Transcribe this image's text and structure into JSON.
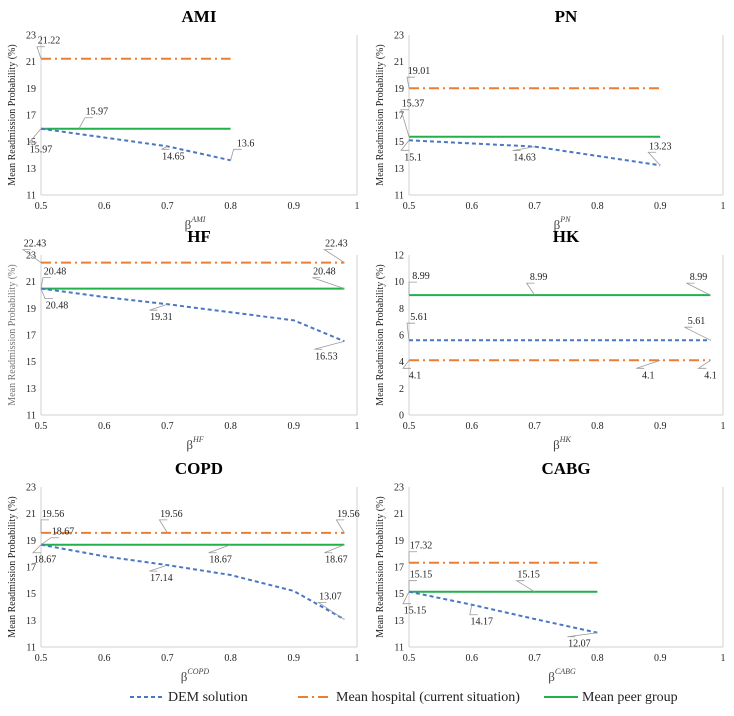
{
  "legend": [
    {
      "name": "DEM solution",
      "color": "#4a77c4",
      "dash": "4,3"
    },
    {
      "name": "Mean hospital (current situation)",
      "color": "#ed7d31",
      "dash": "10,4,2,4"
    },
    {
      "name": "Mean peer group",
      "color": "#22b04b",
      "dash": ""
    }
  ],
  "chart_data": [
    {
      "type": "line",
      "title": "AMI",
      "ylabel": "Mean Readmission Probability (%)",
      "xlabel_base": "β",
      "xlabel_sup": "AMI",
      "xlim": [
        0.5,
        1
      ],
      "ylim": [
        11,
        23
      ],
      "xticks": [
        "0.5",
        "0.6",
        "0.7",
        "0.8",
        "0.9",
        "1"
      ],
      "yticks": [
        "11",
        "13",
        "15",
        "17",
        "19",
        "21",
        "23"
      ],
      "series": [
        {
          "name": "DEM solution",
          "x": [
            0.5,
            0.7,
            0.8
          ],
          "y": [
            15.97,
            14.65,
            13.6
          ]
        },
        {
          "name": "Mean hospital (current situation)",
          "x": [
            0.5,
            0.8
          ],
          "y": [
            21.22,
            21.22
          ]
        },
        {
          "name": "Mean peer group",
          "x": [
            0.5,
            0.8
          ],
          "y": [
            15.97,
            15.97
          ]
        }
      ],
      "labels": [
        {
          "text": "21.22",
          "x": 0.5,
          "y": 21.22,
          "dx": 8,
          "dy": -15
        },
        {
          "text": "15.97",
          "x": 0.56,
          "y": 15.97,
          "dx": 18,
          "dy": -14
        },
        {
          "text": "15.97",
          "x": 0.5,
          "y": 15.97,
          "dx": 0,
          "dy": 24
        },
        {
          "text": "14.65",
          "x": 0.7,
          "y": 14.65,
          "dx": 6,
          "dy": 13
        },
        {
          "text": "13.6",
          "x": 0.8,
          "y": 13.6,
          "dx": 15,
          "dy": -14
        }
      ]
    },
    {
      "type": "line",
      "title": "PN",
      "ylabel": "Mean Readmission Probability (%)",
      "xlabel_base": "β",
      "xlabel_sup": "PN",
      "xlim": [
        0.5,
        1
      ],
      "ylim": [
        11,
        23
      ],
      "xticks": [
        "0.5",
        "0.6",
        "0.7",
        "0.8",
        "0.9",
        "1"
      ],
      "yticks": [
        "11",
        "13",
        "15",
        "17",
        "19",
        "21",
        "23"
      ],
      "series": [
        {
          "name": "DEM solution",
          "x": [
            0.5,
            0.7,
            0.9
          ],
          "y": [
            15.1,
            14.63,
            13.23
          ]
        },
        {
          "name": "Mean hospital (current situation)",
          "x": [
            0.5,
            0.9
          ],
          "y": [
            19.01,
            19.01
          ]
        },
        {
          "name": "Mean peer group",
          "x": [
            0.5,
            0.9
          ],
          "y": [
            15.37,
            15.37
          ]
        }
      ],
      "labels": [
        {
          "text": "19.01",
          "x": 0.5,
          "y": 19.01,
          "dx": 10,
          "dy": -14
        },
        {
          "text": "15.37",
          "x": 0.5,
          "y": 15.37,
          "dx": 4,
          "dy": -30
        },
        {
          "text": "15.1",
          "x": 0.5,
          "y": 15.1,
          "dx": 4,
          "dy": 20
        },
        {
          "text": "14.63",
          "x": 0.7,
          "y": 14.63,
          "dx": -10,
          "dy": 14
        },
        {
          "text": "13.23",
          "x": 0.9,
          "y": 13.23,
          "dx": 0,
          "dy": -16
        }
      ]
    },
    {
      "type": "line",
      "title": "HF",
      "ylabel": "Mean Readmission Probability (%)",
      "ylabel_gray": true,
      "xlabel_base": "β",
      "xlabel_sup": "HF",
      "xlim": [
        0.5,
        1
      ],
      "ylim": [
        11,
        23
      ],
      "xticks": [
        "0.5",
        "0.6",
        "0.7",
        "0.8",
        "0.9",
        "1"
      ],
      "yticks": [
        "11",
        "13",
        "15",
        "17",
        "19",
        "21",
        "23"
      ],
      "series": [
        {
          "name": "DEM solution",
          "x": [
            0.5,
            0.6,
            0.7,
            0.8,
            0.9,
            0.98
          ],
          "y": [
            20.48,
            19.85,
            19.31,
            18.7,
            18.1,
            16.53
          ]
        },
        {
          "name": "Mean hospital (current situation)",
          "x": [
            0.5,
            0.98
          ],
          "y": [
            22.43,
            22.43
          ]
        },
        {
          "name": "Mean peer group",
          "x": [
            0.5,
            0.98
          ],
          "y": [
            20.48,
            20.48
          ]
        }
      ],
      "labels": [
        {
          "text": "22.43",
          "x": 0.5,
          "y": 22.43,
          "dx": -6,
          "dy": -16
        },
        {
          "text": "22.43",
          "x": 0.98,
          "y": 22.43,
          "dx": -8,
          "dy": -16
        },
        {
          "text": "20.48",
          "x": 0.5,
          "y": 20.48,
          "dx": 14,
          "dy": -14
        },
        {
          "text": "20.48",
          "x": 0.98,
          "y": 20.48,
          "dx": -20,
          "dy": -14
        },
        {
          "text": "20.48",
          "x": 0.5,
          "y": 20.48,
          "dx": 16,
          "dy": 20
        },
        {
          "text": "19.31",
          "x": 0.7,
          "y": 19.31,
          "dx": -6,
          "dy": 16
        },
        {
          "text": "16.53",
          "x": 0.98,
          "y": 16.53,
          "dx": -18,
          "dy": 18
        }
      ]
    },
    {
      "type": "line",
      "title": "HK",
      "ylabel": "Mean Readmission Probability (%)",
      "xlabel_base": "β",
      "xlabel_sup": "HK",
      "xlim": [
        0.5,
        1
      ],
      "ylim": [
        0,
        12
      ],
      "xticks": [
        "0.5",
        "0.6",
        "0.7",
        "0.8",
        "0.9",
        "1"
      ],
      "yticks": [
        "0",
        "2",
        "4",
        "6",
        "8",
        "10",
        "12"
      ],
      "series": [
        {
          "name": "DEM solution",
          "x": [
            0.5,
            0.98
          ],
          "y": [
            5.61,
            5.61
          ]
        },
        {
          "name": "Mean hospital (current situation)",
          "x": [
            0.5,
            0.98
          ],
          "y": [
            4.1,
            4.1
          ]
        },
        {
          "name": "Mean peer group",
          "x": [
            0.5,
            0.98
          ],
          "y": [
            8.99,
            8.99
          ]
        }
      ],
      "labels": [
        {
          "text": "8.99",
          "x": 0.5,
          "y": 8.99,
          "dx": 12,
          "dy": -16
        },
        {
          "text": "8.99",
          "x": 0.7,
          "y": 8.99,
          "dx": 4,
          "dy": -15
        },
        {
          "text": "8.99",
          "x": 0.98,
          "y": 8.99,
          "dx": -12,
          "dy": -15
        },
        {
          "text": "5.61",
          "x": 0.5,
          "y": 5.61,
          "dx": 10,
          "dy": -20
        },
        {
          "text": "5.61",
          "x": 0.98,
          "y": 5.61,
          "dx": -14,
          "dy": -16
        },
        {
          "text": "4.1",
          "x": 0.5,
          "y": 4.1,
          "dx": 6,
          "dy": 18
        },
        {
          "text": "4.1",
          "x": 0.9,
          "y": 4.1,
          "dx": -12,
          "dy": 18
        },
        {
          "text": "4.1",
          "x": 0.98,
          "y": 4.1,
          "dx": 0,
          "dy": 18
        }
      ]
    },
    {
      "type": "line",
      "title": "COPD",
      "ylabel": "Mean Readmission Probability (%)",
      "xlabel_base": "β",
      "xlabel_sup": "COPD",
      "xlim": [
        0.5,
        1
      ],
      "ylim": [
        11,
        23
      ],
      "xticks": [
        "0.5",
        "0.6",
        "0.7",
        "0.8",
        "0.9",
        "1"
      ],
      "yticks": [
        "11",
        "13",
        "15",
        "17",
        "19",
        "21",
        "23"
      ],
      "series": [
        {
          "name": "DEM solution",
          "x": [
            0.5,
            0.6,
            0.7,
            0.8,
            0.9,
            0.98
          ],
          "y": [
            18.67,
            17.8,
            17.14,
            16.4,
            15.2,
            13.07
          ]
        },
        {
          "name": "Mean hospital (current situation)",
          "x": [
            0.5,
            0.98
          ],
          "y": [
            19.56,
            19.56
          ]
        },
        {
          "name": "Mean peer group",
          "x": [
            0.5,
            0.98
          ],
          "y": [
            18.67,
            18.67
          ]
        }
      ],
      "labels": [
        {
          "text": "19.56",
          "x": 0.5,
          "y": 19.56,
          "dx": 12,
          "dy": -16
        },
        {
          "text": "19.56",
          "x": 0.7,
          "y": 19.56,
          "dx": 4,
          "dy": -16
        },
        {
          "text": "19.56",
          "x": 0.98,
          "y": 19.56,
          "dx": 4,
          "dy": -16
        },
        {
          "text": "18.67",
          "x": 0.5,
          "y": 18.67,
          "dx": 22,
          "dy": -10
        },
        {
          "text": "18.67",
          "x": 0.5,
          "y": 18.67,
          "dx": 4,
          "dy": 18
        },
        {
          "text": "18.67",
          "x": 0.8,
          "y": 18.67,
          "dx": -10,
          "dy": 18
        },
        {
          "text": "18.67",
          "x": 0.98,
          "y": 18.67,
          "dx": -8,
          "dy": 18
        },
        {
          "text": "17.14",
          "x": 0.7,
          "y": 17.14,
          "dx": -6,
          "dy": 16
        },
        {
          "text": "13.07",
          "x": 0.98,
          "y": 13.07,
          "dx": -14,
          "dy": -20
        }
      ]
    },
    {
      "type": "line",
      "title": "CABG",
      "ylabel": "Mean Readmission Probability (%)",
      "xlabel_base": "β",
      "xlabel_sup": "CABG",
      "xlim": [
        0.5,
        1
      ],
      "ylim": [
        11,
        23
      ],
      "xticks": [
        "0.5",
        "0.6",
        "0.7",
        "0.8",
        "0.9",
        "1"
      ],
      "yticks": [
        "11",
        "13",
        "15",
        "17",
        "19",
        "21",
        "23"
      ],
      "series": [
        {
          "name": "DEM solution",
          "x": [
            0.5,
            0.6,
            0.7,
            0.8
          ],
          "y": [
            15.15,
            14.17,
            13.1,
            12.07
          ]
        },
        {
          "name": "Mean hospital (current situation)",
          "x": [
            0.5,
            0.8
          ],
          "y": [
            17.32,
            17.32
          ]
        },
        {
          "name": "Mean peer group",
          "x": [
            0.5,
            0.8
          ],
          "y": [
            15.15,
            15.15
          ]
        }
      ],
      "labels": [
        {
          "text": "17.32",
          "x": 0.5,
          "y": 17.32,
          "dx": 12,
          "dy": -14
        },
        {
          "text": "15.15",
          "x": 0.5,
          "y": 15.15,
          "dx": 12,
          "dy": -14
        },
        {
          "text": "15.15",
          "x": 0.7,
          "y": 15.15,
          "dx": -6,
          "dy": -14
        },
        {
          "text": "15.15",
          "x": 0.5,
          "y": 15.15,
          "dx": 6,
          "dy": 22
        },
        {
          "text": "14.17",
          "x": 0.6,
          "y": 14.17,
          "dx": 10,
          "dy": 20
        },
        {
          "text": "12.07",
          "x": 0.8,
          "y": 12.07,
          "dx": -18,
          "dy": 14
        }
      ]
    }
  ]
}
